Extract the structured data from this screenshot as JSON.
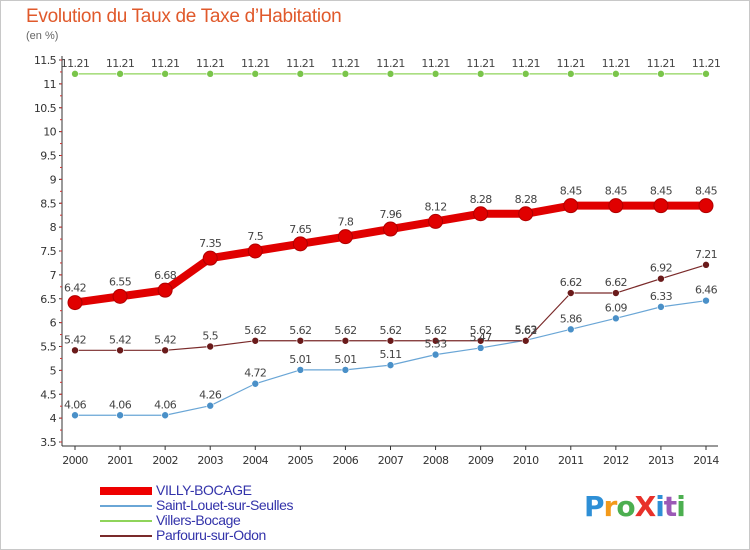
{
  "header": {
    "title": "Evolution du Taux de Taxe d’Habitation",
    "unit": "(en %)"
  },
  "logo": {
    "text": "ProXiti",
    "colors": [
      "#2e8fd6",
      "#f39a1a",
      "#4caf50",
      "#e8312a",
      "#2e8fd6",
      "#9b59b6",
      "#4caf50"
    ]
  },
  "chart_data": {
    "type": "line",
    "title": "Evolution du Taux de Taxe d’Habitation",
    "ylabel": "(en %)",
    "xlabel": "",
    "ylim": [
      3.5,
      11.5
    ],
    "yticks": [
      "3.5",
      "4",
      "4.5",
      "5",
      "5.5",
      "6",
      "6.5",
      "7",
      "7.5",
      "8",
      "8.5",
      "9",
      "9.5",
      "10",
      "10.5",
      "11",
      "11.5"
    ],
    "grid": false,
    "legend_position": "bottom-left",
    "categories": [
      "2000",
      "2001",
      "2002",
      "2003",
      "2004",
      "2005",
      "2006",
      "2007",
      "2008",
      "2009",
      "2010",
      "2011",
      "2012",
      "2013",
      "2014"
    ],
    "series": [
      {
        "name": "VILLY-BOCAGE",
        "color": "#ee0000",
        "values": [
          6.42,
          6.55,
          6.68,
          7.35,
          7.5,
          7.65,
          7.8,
          7.96,
          8.12,
          8.28,
          8.28,
          8.45,
          8.45,
          8.45,
          8.45
        ],
        "labels": [
          "6.42",
          "6.55",
          "6.68",
          "7.35",
          "7.5",
          "7.65",
          "7.8",
          "7.96",
          "8.12",
          "8.28",
          "8.28",
          "8.45",
          "8.45",
          "8.45",
          "8.45"
        ]
      },
      {
        "name": "Saint-Louet-sur-Seulles",
        "color": "#6aa6d6",
        "values": [
          4.06,
          4.06,
          4.06,
          4.26,
          4.72,
          5.01,
          5.01,
          5.11,
          5.33,
          5.47,
          5.63,
          5.86,
          6.09,
          6.33,
          6.46
        ],
        "labels": [
          "4.06",
          "4.06",
          "4.06",
          "4.26",
          "4.72",
          "5.01",
          "5.01",
          "5.11",
          "5.33",
          "5.47",
          "5.63",
          "5.86",
          "6.09",
          "6.33",
          "6.46"
        ]
      },
      {
        "name": "Villers-Bocage",
        "color": "#8fd45a",
        "values": [
          11.21,
          11.21,
          11.21,
          11.21,
          11.21,
          11.21,
          11.21,
          11.21,
          11.21,
          11.21,
          11.21,
          11.21,
          11.21,
          11.21,
          11.21
        ],
        "labels": [
          "11.21",
          "11.21",
          "11.21",
          "11.21",
          "11.21",
          "11.21",
          "11.21",
          "11.21",
          "11.21",
          "11.21",
          "11.21",
          "11.21",
          "11.21",
          "11.21",
          "11.21"
        ]
      },
      {
        "name": "Parfouru-sur-Odon",
        "color": "#7a2a2a",
        "values": [
          5.42,
          5.42,
          5.42,
          5.5,
          5.62,
          5.62,
          5.62,
          5.62,
          5.62,
          5.62,
          5.62,
          6.62,
          6.62,
          6.92,
          7.21
        ],
        "labels": [
          "5.42",
          "5.42",
          "5.42",
          "5.5",
          "5.62",
          "5.62",
          "5.62",
          "5.62",
          "5.62",
          "5.62",
          "5.62",
          "6.62",
          "6.62",
          "6.92",
          "7.21"
        ]
      }
    ]
  }
}
